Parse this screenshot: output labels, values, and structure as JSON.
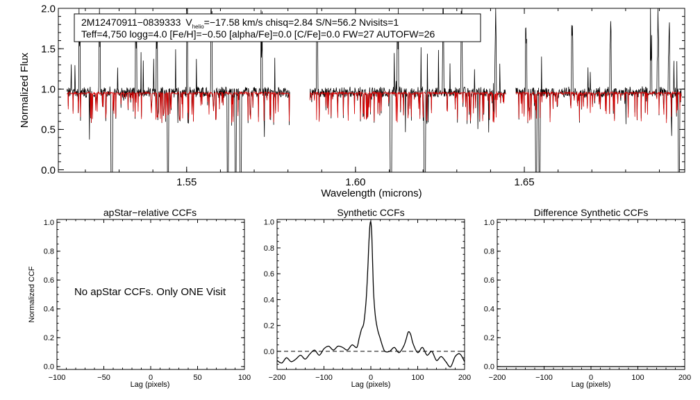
{
  "colors": {
    "observed": "#000000",
    "model": "#d40000",
    "axis": "#000000",
    "background": "#ffffff"
  },
  "chart_data": [
    {
      "type": "line",
      "id": "spectrum",
      "title": "",
      "xlabel": "Wavelength (microns)",
      "ylabel": "Normalized Flux",
      "xlim": [
        1.512,
        1.6975
      ],
      "ylim": [
        -0.03,
        2.0
      ],
      "xticks": [
        1.55,
        1.6,
        1.65
      ],
      "xtick_labels": [
        "1.55",
        "1.60",
        "1.65"
      ],
      "yticks": [
        0.0,
        0.5,
        1.0,
        1.5,
        2.0
      ],
      "ytick_labels": [
        "0.0",
        "0.5",
        "1.0",
        "1.5",
        "2.0"
      ],
      "segments": [
        [
          1.5145,
          1.5805
        ],
        [
          1.5865,
          1.6445
        ],
        [
          1.6475,
          1.6965
        ]
      ],
      "continuum": {
        "observed": 0.96,
        "model": 0.95
      },
      "deep_absorptions": [
        1.5278,
        1.5445,
        1.5622,
        1.5645,
        1.566,
        1.6105,
        1.6205,
        1.6535,
        1.6545,
        1.6958
      ],
      "sky_emissions": [
        1.5183,
        1.5242,
        1.535,
        1.5412,
        1.5502,
        1.5573,
        1.5722,
        1.5855,
        1.5887,
        1.6125,
        1.626,
        1.6315,
        1.6415,
        1.6505,
        1.6642,
        1.6755,
        1.6875,
        1.6896,
        1.6928
      ],
      "series": [
        {
          "name": "observed",
          "color": "#000000"
        },
        {
          "name": "synthetic model",
          "color": "#d40000"
        }
      ],
      "annotation": {
        "star": "2M12470911−0839333",
        "vhelio": "=−17.58 km/s",
        "vhelio_label": "V",
        "vhelio_sub": "helio",
        "rest_line1": "  chisq=2.84  S/N=56.2  Nvisits=1",
        "line2": "Teff=4,750 logg=4.0 [Fe/H]=−0.50 [alpha/Fe]=0.0 [C/Fe]=0.0 FW=27 AUTOFW=26"
      }
    },
    {
      "type": "line",
      "id": "apstar_ccf",
      "title": "apStar−relative CCFs",
      "xlabel": "Lag (pixels)",
      "ylabel": "Normalized CCF",
      "xlim": [
        -100,
        100
      ],
      "ylim": [
        -0.02,
        1.02
      ],
      "xticks": [
        -100,
        -50,
        0,
        50,
        100
      ],
      "xtick_labels": [
        "−100",
        "−50",
        "0",
        "50",
        "100"
      ],
      "yticks": [
        0.0,
        0.2,
        0.4,
        0.6,
        0.8,
        1.0
      ],
      "ytick_labels": [
        "0.0",
        "0.2",
        "0.4",
        "0.6",
        "0.8",
        "1.0"
      ],
      "message": "No apStar CCFs.  Only ONE Visit",
      "series": []
    },
    {
      "type": "line",
      "id": "synthetic_ccf",
      "title": "Synthetic CCFs",
      "xlabel": "Lag (pixels)",
      "ylabel": "",
      "xlim": [
        -200,
        200
      ],
      "ylim": [
        -0.14,
        1.02
      ],
      "xticks": [
        -200,
        -100,
        0,
        100,
        200
      ],
      "xtick_labels": [
        "−200",
        "−100",
        "0",
        "100",
        "200"
      ],
      "yticks": [
        0.0,
        0.2,
        0.4,
        0.6,
        0.8,
        1.0
      ],
      "ytick_labels": [
        "0.0",
        "0.2",
        "0.4",
        "0.6",
        "0.8",
        "1.0"
      ],
      "zero_line": 0.0,
      "series": [
        {
          "name": "synthetic CCF",
          "x": [
            -200,
            -190,
            -180,
            -170,
            -160,
            -150,
            -140,
            -130,
            -120,
            -110,
            -100,
            -90,
            -80,
            -70,
            -60,
            -50,
            -40,
            -30,
            -25,
            -20,
            -15,
            -10,
            -6,
            -4,
            -2,
            0,
            2,
            4,
            6,
            10,
            15,
            20,
            25,
            30,
            40,
            50,
            60,
            70,
            75,
            80,
            85,
            90,
            100,
            110,
            120,
            130,
            140,
            150,
            160,
            170,
            180,
            190,
            200
          ],
          "y": [
            -0.07,
            -0.09,
            -0.05,
            -0.08,
            -0.06,
            -0.03,
            -0.06,
            -0.02,
            0.01,
            -0.03,
            0.02,
            0.04,
            0.01,
            0.04,
            0.03,
            0.01,
            0.05,
            0.03,
            0.1,
            0.17,
            0.22,
            0.4,
            0.68,
            0.85,
            0.97,
            1.0,
            0.9,
            0.66,
            0.45,
            0.26,
            0.16,
            0.1,
            0.04,
            0.0,
            0.0,
            0.03,
            -0.01,
            0.04,
            0.09,
            0.15,
            0.13,
            0.06,
            -0.01,
            0.03,
            -0.03,
            0.0,
            -0.07,
            -0.04,
            -0.08,
            -0.12,
            -0.04,
            -0.02,
            -0.08
          ]
        }
      ]
    },
    {
      "type": "line",
      "id": "difference_ccf",
      "title": "Difference Synthetic CCFs",
      "xlabel": "Lag (pixels)",
      "ylabel": "",
      "xlim": [
        -200,
        200
      ],
      "ylim": [
        -0.02,
        1.02
      ],
      "xticks": [
        -200,
        -100,
        0,
        100,
        200
      ],
      "xtick_labels": [
        "−200",
        "−100",
        "0",
        "100",
        "200"
      ],
      "yticks": [
        0.0,
        0.2,
        0.4,
        0.6,
        0.8,
        1.0
      ],
      "ytick_labels": [
        "0.0",
        "0.2",
        "0.4",
        "0.6",
        "0.8",
        "1.0"
      ],
      "series": [
        {
          "name": "difference",
          "x": [
            -200,
            200
          ],
          "y": [
            0.0,
            0.0
          ]
        }
      ]
    }
  ]
}
